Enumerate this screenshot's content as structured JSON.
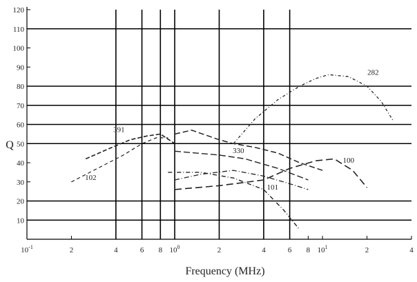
{
  "chart_data": {
    "type": "line",
    "title": "",
    "xlabel": "Frequency (MHz)",
    "ylabel": "Q",
    "x_scale": "log",
    "xlim": [
      0.1,
      40
    ],
    "ylim": [
      0,
      120
    ],
    "yticks": [
      10,
      20,
      30,
      40,
      50,
      60,
      70,
      80,
      90,
      100,
      110,
      120
    ],
    "xticks": [
      {
        "value": 0.1,
        "base": "10",
        "exp": "-1"
      },
      {
        "value": 0.2,
        "label": "2"
      },
      {
        "value": 0.4,
        "label": "4"
      },
      {
        "value": 0.6,
        "label": "6"
      },
      {
        "value": 0.8,
        "label": "8"
      },
      {
        "value": 1,
        "base": "10",
        "exp": "0"
      },
      {
        "value": 2,
        "label": "2"
      },
      {
        "value": 4,
        "label": "4"
      },
      {
        "value": 6,
        "label": "6"
      },
      {
        "value": 8,
        "label": "8"
      },
      {
        "value": 10,
        "base": "10",
        "exp": "1"
      },
      {
        "value": 20,
        "label": "2"
      },
      {
        "value": 40,
        "label": "4"
      }
    ],
    "gridlines_y": [
      10,
      20,
      50,
      60,
      70,
      80,
      110
    ],
    "gridlines_x": [
      0.4,
      0.6,
      0.8,
      1,
      2,
      4,
      6
    ],
    "series": [
      {
        "name": "102",
        "x": [
          0.2,
          0.3,
          0.45,
          0.6,
          0.75,
          0.9
        ],
        "y": [
          30,
          37,
          44,
          50,
          53,
          53
        ]
      },
      {
        "name": "391",
        "x": [
          0.25,
          0.35,
          0.5,
          0.65,
          0.8,
          1.0
        ],
        "y": [
          42,
          47,
          52,
          54,
          55,
          50
        ]
      },
      {
        "name": "330",
        "x": [
          1.0,
          1.3,
          2.0,
          2.5,
          3.5,
          5.0,
          7.0,
          10.0
        ],
        "y": [
          55,
          57,
          52,
          50,
          48,
          45,
          40,
          36
        ]
      },
      {
        "name": "282",
        "x": [
          2.5,
          3.5,
          5.0,
          7.0,
          9.0,
          11.0,
          15.0,
          20.0,
          25.0,
          30.0
        ],
        "y": [
          50,
          63,
          73,
          80,
          84,
          86,
          85,
          80,
          72,
          62
        ]
      },
      {
        "name": "",
        "x": [
          1.0,
          2.0,
          3.0,
          5.0,
          8.0
        ],
        "y": [
          46,
          44,
          42,
          37,
          31
        ]
      },
      {
        "name": "101",
        "x": [
          0.9,
          1.5,
          2.5,
          4.0,
          5.5,
          7.0
        ],
        "y": [
          35,
          35,
          32,
          26,
          15,
          5
        ]
      },
      {
        "name": "",
        "x": [
          1.0,
          1.5,
          2.5,
          4.0,
          6.0,
          8.0
        ],
        "y": [
          31,
          34,
          36,
          33,
          29,
          26
        ]
      },
      {
        "name": "100",
        "x": [
          1.0,
          2.0,
          4.0,
          6.0,
          9.0,
          12.0,
          16.0,
          20.0
        ],
        "y": [
          26,
          28,
          31,
          37,
          41,
          42,
          36,
          27
        ]
      }
    ]
  }
}
